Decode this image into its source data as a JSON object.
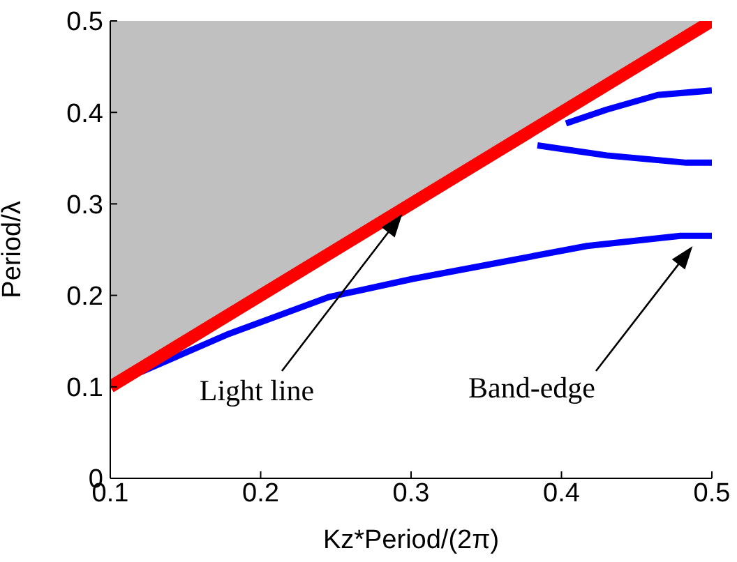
{
  "chart_data": {
    "type": "line",
    "xlabel": "Kz*Period/(2π)",
    "ylabel": "Period/λ",
    "xlim": [
      0.1,
      0.5
    ],
    "xticks": [
      0.1,
      0.2,
      0.3,
      0.4,
      0.5
    ],
    "ylim": [
      0,
      0.5
    ],
    "yticks": [
      0,
      0.1,
      0.2,
      0.3,
      0.4,
      0.5
    ],
    "grid": false,
    "marker": "none",
    "line_style": "solid",
    "series": [
      {
        "color": "#ff0000",
        "x": [
          0.1,
          0.5
        ],
        "values": [
          0.1,
          0.5
        ],
        "lower": [
          0.1,
          0.5
        ],
        "upper": [
          0.5,
          0.5
        ]
      },
      {
        "color": "#0000ff",
        "x": [
          0.12,
          0.179,
          0.245,
          0.301,
          0.417,
          0.479,
          0.5
        ],
        "values": [
          0.116,
          0.158,
          0.198,
          0.218,
          0.254,
          0.265,
          0.265
        ]
      },
      {
        "color": "#0000ff",
        "x": [
          0.384,
          0.43,
          0.483,
          0.5
        ],
        "values": [
          0.364,
          0.353,
          0.345,
          0.345
        ]
      },
      {
        "color": "#0000ff",
        "x": [
          0.403,
          0.43,
          0.464,
          0.5
        ],
        "values": [
          0.388,
          0.403,
          0.419,
          0.424
        ]
      }
    ],
    "annotations": [
      "Light line",
      "Band-edge"
    ]
  }
}
